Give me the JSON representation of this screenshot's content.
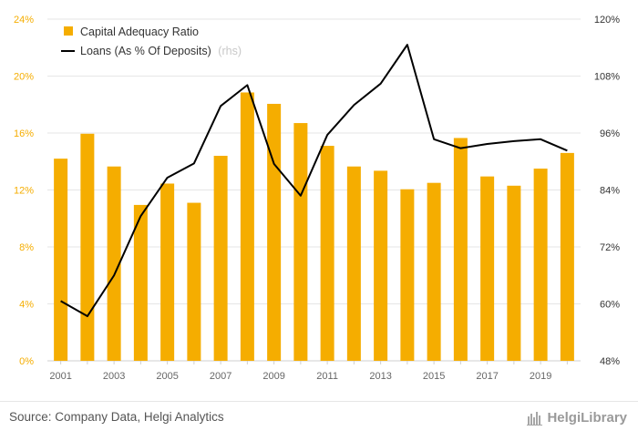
{
  "chart_data": {
    "type": "bar+line",
    "x": [
      "2001",
      "2002",
      "2003",
      "2004",
      "2005",
      "2006",
      "2007",
      "2008",
      "2009",
      "2010",
      "2011",
      "2012",
      "2013",
      "2014",
      "2015",
      "2016",
      "2017",
      "2018",
      "2019",
      "2020"
    ],
    "x_tick_labels": [
      "2001",
      "2003",
      "2005",
      "2007",
      "2009",
      "2011",
      "2013",
      "2015",
      "2017",
      "2019"
    ],
    "series": [
      {
        "name": "Capital Adequacy Ratio",
        "type": "bar",
        "axis": "left",
        "color": "#f5ad00",
        "values": [
          14.2,
          15.95,
          13.65,
          10.95,
          12.45,
          11.1,
          14.4,
          18.85,
          18.05,
          16.7,
          15.1,
          13.65,
          13.35,
          12.05,
          12.5,
          15.65,
          12.95,
          12.3,
          13.5,
          14.6
        ]
      },
      {
        "name": "Loans (As % Of Deposits)",
        "legend_suffix": "(rhs)",
        "type": "line",
        "axis": "right",
        "color": "#000000",
        "values": [
          60.6,
          57.4,
          66.0,
          78.5,
          86.6,
          89.6,
          101.7,
          106.1,
          89.5,
          82.8,
          95.6,
          101.9,
          106.4,
          114.6,
          94.7,
          92.8,
          93.7,
          94.3,
          94.7,
          92.3
        ]
      }
    ],
    "y_left": {
      "ticks": [
        "0%",
        "4%",
        "8%",
        "12%",
        "16%",
        "20%",
        "24%"
      ],
      "lim": [
        0,
        24
      ]
    },
    "y_right": {
      "ticks": [
        "48%",
        "60%",
        "72%",
        "84%",
        "96%",
        "108%",
        "120%"
      ],
      "lim": [
        48,
        120
      ]
    },
    "legend_position": "top-left",
    "grid": "horizontal",
    "colors": {
      "left_axis": "#f5ad00",
      "right_axis": "#333333",
      "grid": "#e6e6e6"
    }
  },
  "footer": {
    "source": "Source: Company Data, Helgi Analytics",
    "brand": "HelgiLibrary"
  }
}
